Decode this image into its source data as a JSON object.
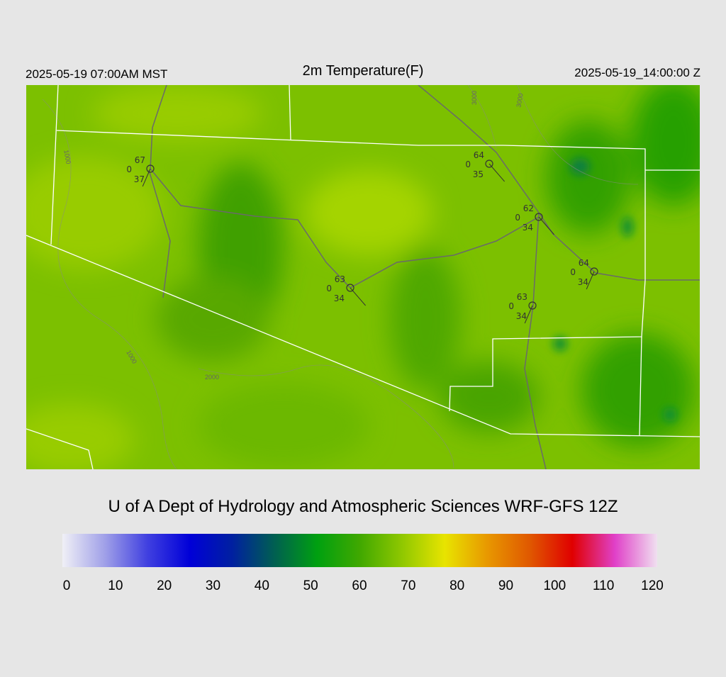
{
  "header": {
    "left": "2025-05-19 07:00AM MST",
    "title": "2m Temperature(F)",
    "right": "2025-05-19_14:00:00 Z"
  },
  "stations": [
    {
      "temp": 67,
      "wind": 0,
      "dewpoint": 37
    },
    {
      "temp": 64,
      "wind": 0,
      "dewpoint": 35
    },
    {
      "temp": 62,
      "wind": 0,
      "dewpoint": 34
    },
    {
      "temp": 64,
      "wind": 0,
      "dewpoint": 34
    },
    {
      "temp": 63,
      "wind": 0,
      "dewpoint": 34
    },
    {
      "temp": 63,
      "wind": 0,
      "dewpoint": 34
    }
  ],
  "contour_labels": [
    "1000",
    "1000",
    "2000",
    "3000",
    "3000"
  ],
  "credit": "U of A Dept of Hydrology and Atmospheric Sciences WRF-GFS 12Z",
  "colorbar": {
    "lim": [
      0,
      120
    ],
    "ticks": [
      0,
      10,
      20,
      30,
      40,
      50,
      60,
      70,
      80,
      90,
      100,
      110,
      120
    ],
    "colors": [
      "#f0f0f6",
      "#a0a0e8",
      "#4040e0",
      "#0000d8",
      "#0020a0",
      "#006050",
      "#00a010",
      "#40a800",
      "#90c800",
      "#e8e400",
      "#e89800",
      "#e05800",
      "#e00000",
      "#e040c8",
      "#f0e0f0"
    ]
  }
}
